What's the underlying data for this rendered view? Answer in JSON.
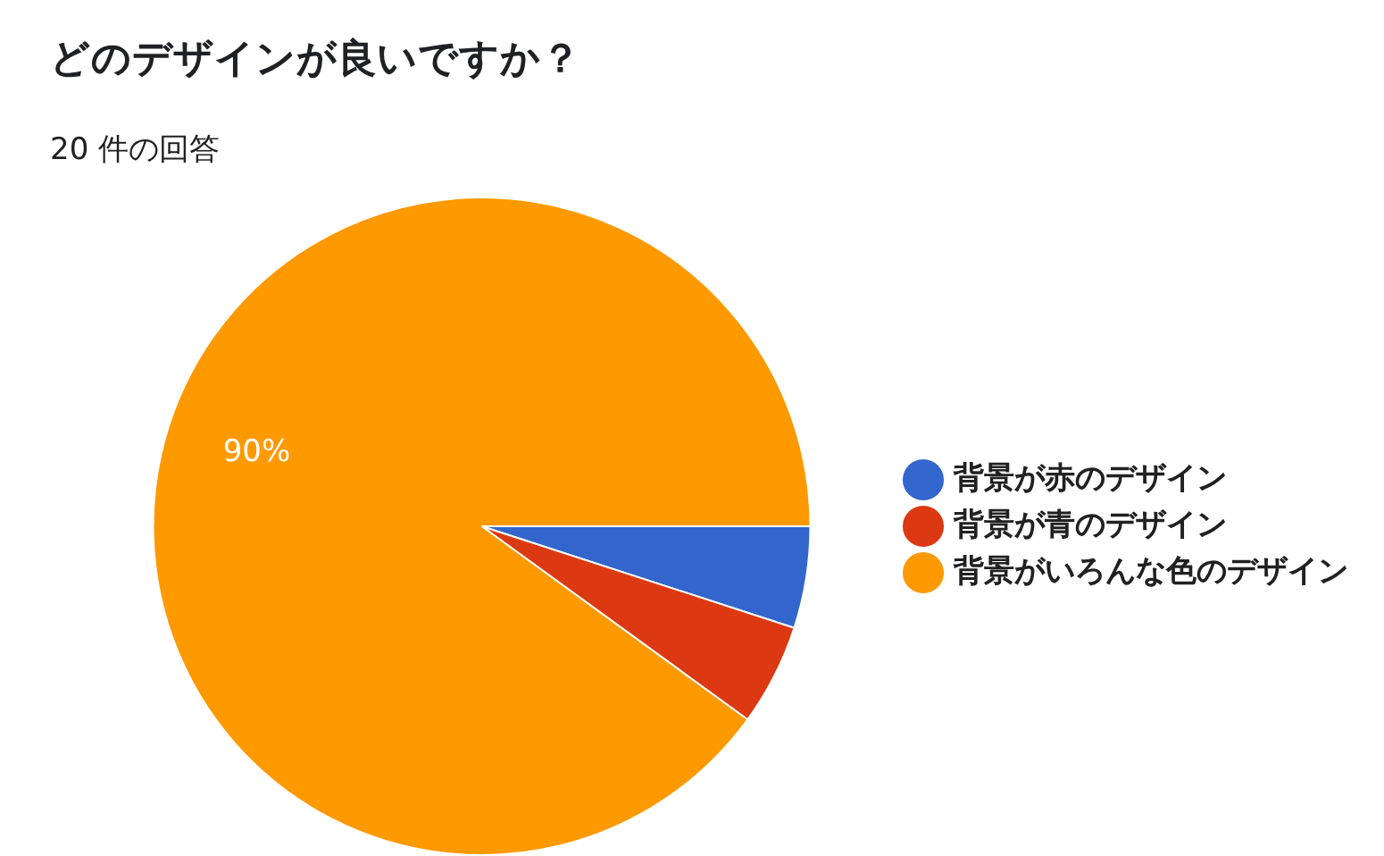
{
  "chart_data": {
    "type": "pie",
    "title": "どのデザインが良いですか？",
    "subtitle": "20 件の回答",
    "categories": [
      "背景が赤のデザイン",
      "背景が青のデザイン",
      "背景がいろんな色のデザイン"
    ],
    "values": [
      5,
      5,
      90
    ],
    "colors": [
      "#3366cc",
      "#dc3912",
      "#ff9900"
    ],
    "value_labels": [
      null,
      null,
      "90%"
    ],
    "legend": "right"
  }
}
